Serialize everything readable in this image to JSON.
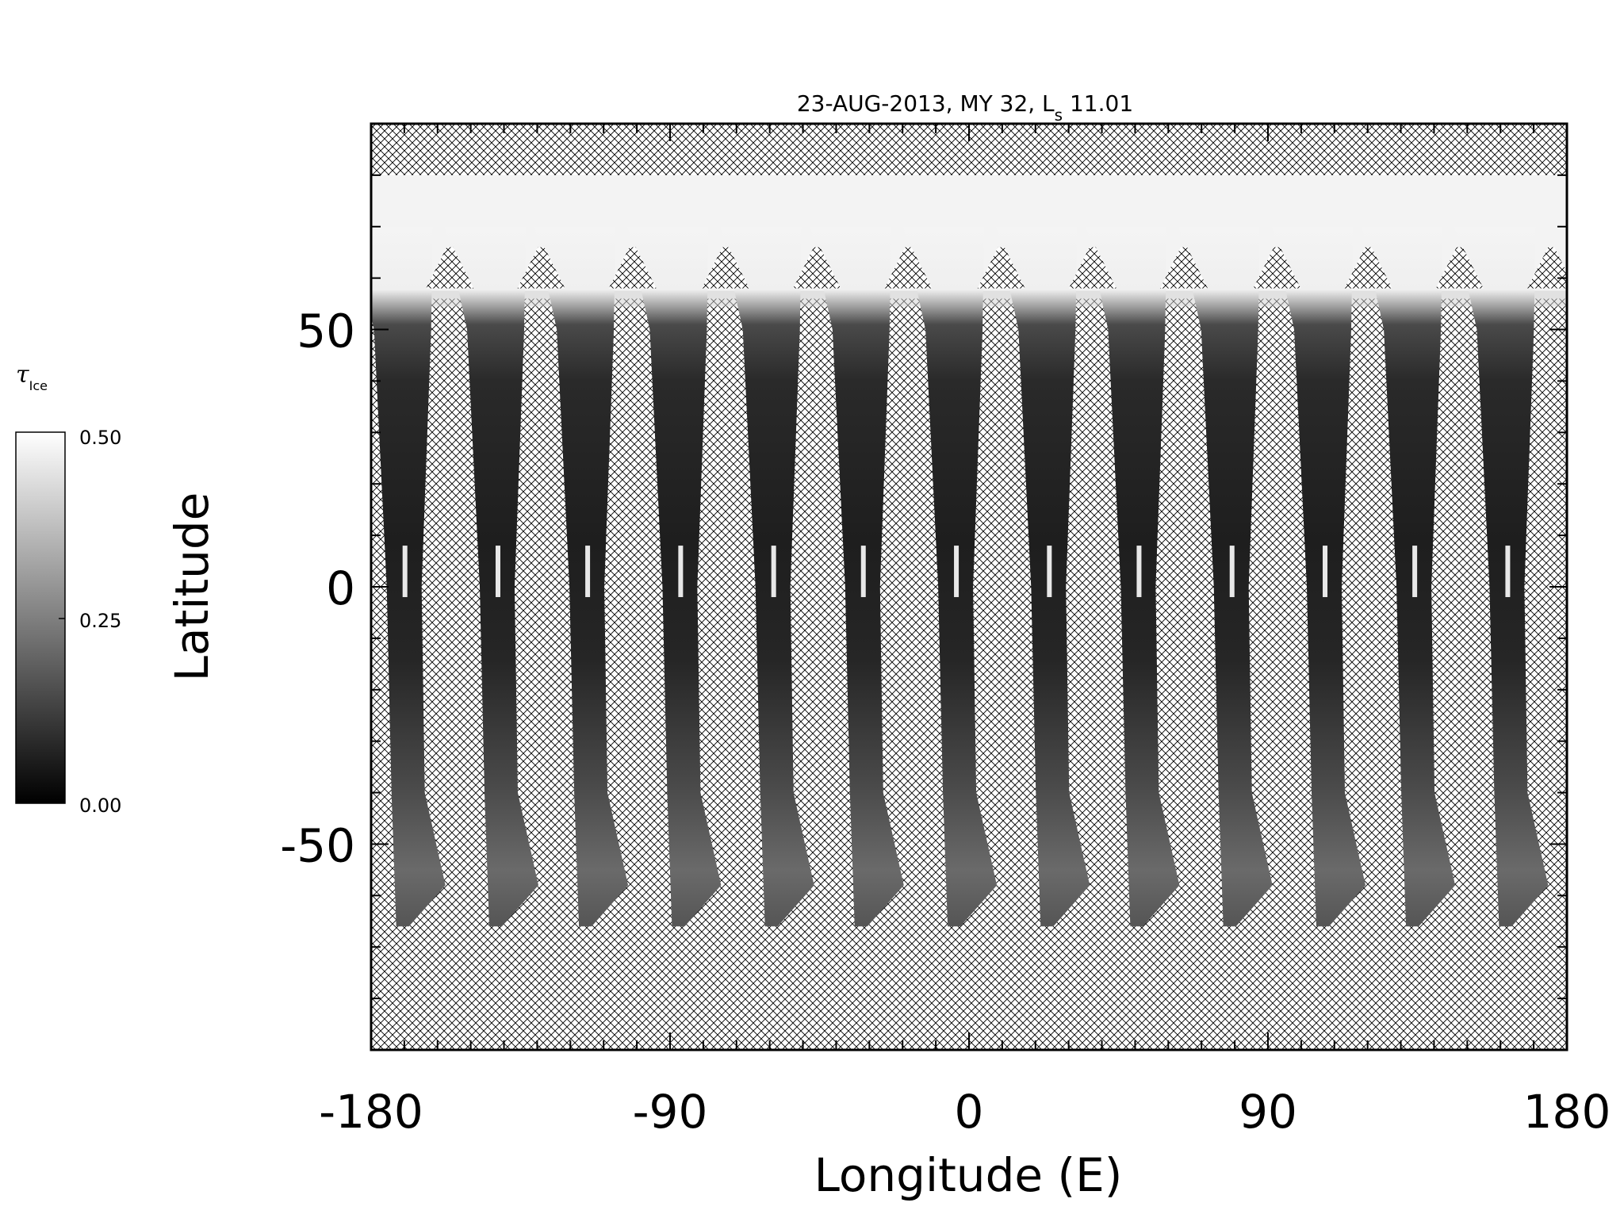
{
  "title": {
    "prefix": "23-AUG-2013, MY 32,  L",
    "subscript": "s",
    "suffix": " 11.01"
  },
  "colorbar": {
    "symbol": "τ",
    "subscript": "Ice",
    "ticks": [
      "0.50",
      "0.25",
      "0.00"
    ],
    "range": [
      0.0,
      0.5
    ],
    "colormap": "grayscale",
    "low_color": "#000000",
    "high_color": "#ffffff"
  },
  "map": {
    "x_label": "Longitude (E)",
    "y_label": "Latitude",
    "x_range": [
      -180,
      180
    ],
    "y_range": [
      -90,
      90
    ],
    "x_ticks": [
      "-180",
      "-90",
      "0",
      "90",
      "180"
    ],
    "x_tick_values": [
      -180,
      -90,
      0,
      90,
      180
    ],
    "y_ticks": [
      "50",
      "0",
      "-50"
    ],
    "y_tick_values": [
      50,
      0,
      -50
    ],
    "no_data_pattern": "crosshatch",
    "data_lat_range": [
      -66,
      80
    ],
    "polar_ice_edge_lat": 60,
    "swath_longitudes_equator": [
      -171,
      -143,
      -116,
      -88,
      -60,
      -33,
      -5,
      23,
      50,
      78,
      106,
      133,
      161
    ],
    "swath_count": 13
  }
}
